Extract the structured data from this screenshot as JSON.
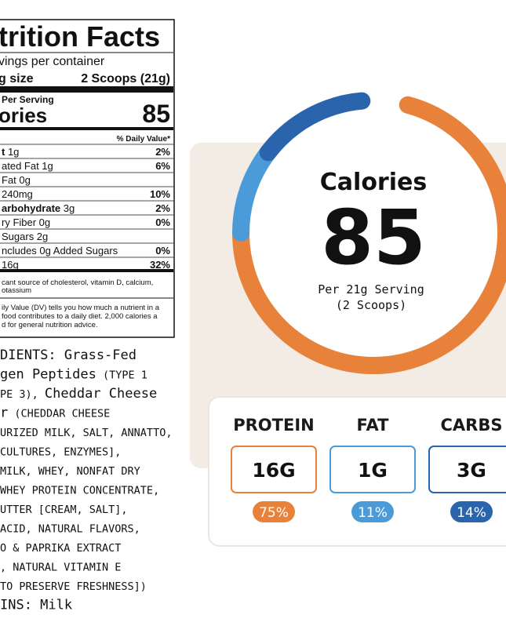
{
  "label": {
    "title": "trition Facts",
    "servings": "vings per container",
    "serving_size_label": "g size",
    "serving_size": "2 Scoops (21g)",
    "per_serving": "Per Serving",
    "calories_label": "ories",
    "calories": "85",
    "daily_value_header": "% Daily Value*",
    "rows": [
      {
        "bold": "t",
        "text": " 1g",
        "dv": "2%"
      },
      {
        "text": "ated Fat 1g",
        "dv": "6%"
      },
      {
        "text": "Fat 0g"
      },
      {
        "text": " 240mg",
        "dv": "10%"
      },
      {
        "bold": "arbohydrate",
        "text": " 3g",
        "dv": "2%"
      },
      {
        "text": "ry Fiber 0g",
        "dv": "0%"
      },
      {
        "text": " Sugars 2g"
      },
      {
        "text": "ncludes 0g Added Sugars",
        "dv": "0%"
      },
      {
        "text": "16g",
        "dv": "32%"
      }
    ],
    "footnotes": [
      "cant source of cholesterol, vitamin D, calcium,",
      "otassium",
      "ily Value (DV) tells you how much a nutrient in a",
      "food contributes to a daily diet. 2,000 calories a",
      "d for general nutrition advice."
    ]
  },
  "ingredients": [
    [
      {
        "heading": "DIENTS: Grass-Fed"
      }
    ],
    [
      {
        "heading": "gen Peptides"
      },
      {
        "text": " (TYPE 1"
      }
    ],
    [
      {
        "text": "PE 3), "
      },
      {
        "heading": "Cheddar Cheese"
      }
    ],
    [
      {
        "heading": "r"
      },
      {
        "text": " (CHEDDAR CHEESE"
      }
    ],
    [
      {
        "text": "URIZED MILK, SALT, ANNATTO,"
      }
    ],
    [
      {
        "text": " CULTURES, ENZYMES],"
      }
    ],
    [
      {
        "text": "MILK, WHEY, NONFAT DRY"
      }
    ],
    [
      {
        "text": "WHEY PROTEIN CONCENTRATE,"
      }
    ],
    [
      {
        "text": "UTTER [CREAM, SALT],"
      }
    ],
    [
      {
        "text": " ACID, NATURAL FLAVORS,"
      }
    ],
    [
      {
        "text": "O & PAPRIKA EXTRACT"
      }
    ],
    [
      {
        "text": ", NATURAL VITAMIN E"
      }
    ],
    [
      {
        "text": " TO PRESERVE FRESHNESS])"
      }
    ],
    [
      {
        "heading": "INS: Milk"
      }
    ]
  ],
  "infographic": {
    "title": "Calories",
    "value": "85",
    "serving": "Per 21g Serving",
    "scoops": "(2 Scoops)",
    "macros": [
      {
        "name": "PROTEIN",
        "amount": "16G",
        "percent": {
          "value": 75,
          "label": "75%"
        },
        "color": "#e8823a"
      },
      {
        "name": "FAT",
        "amount": "1G",
        "percent": {
          "value": 11,
          "label": "11%"
        },
        "color": "#4b9bd8"
      },
      {
        "name": "CARBS",
        "amount": "3G",
        "percent": {
          "value": 14,
          "label": "14%"
        },
        "color": "#2a64ac"
      }
    ]
  }
}
